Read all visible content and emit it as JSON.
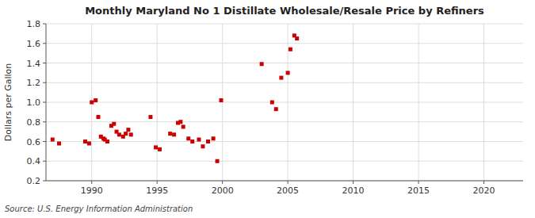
{
  "chart_data": {
    "type": "scatter",
    "title": "Monthly Maryland No 1 Distillate Wholesale/Resale Price by Refiners",
    "y_label": "Dollars per Gallon",
    "annotations": [
      "Source: U.S. Energy Information Administration"
    ],
    "color": "#cc0000",
    "marker": "square",
    "grid": true,
    "xlim": [
      1986.5,
      2023
    ],
    "ylim": [
      0.2,
      1.8
    ],
    "xticks": [
      1990,
      1995,
      2000,
      2005,
      2010,
      2015,
      2020
    ],
    "yticks": [
      0.2,
      0.4,
      0.6,
      0.8,
      {
        "value": 1.0,
        "label": "1.0"
      },
      1.2,
      1.4,
      1.6,
      1.8
    ],
    "x": [
      1987.0,
      1987.5,
      1989.5,
      1989.8,
      1990.0,
      1990.3,
      1990.5,
      1990.7,
      1990.9,
      1991.0,
      1991.2,
      1991.5,
      1991.7,
      1991.9,
      1992.1,
      1992.4,
      1992.6,
      1992.8,
      1993.0,
      1994.5,
      1994.9,
      1995.2,
      1996.0,
      1996.3,
      1996.6,
      1996.8,
      1997.0,
      1997.4,
      1997.7,
      1998.2,
      1998.5,
      1998.9,
      1999.3,
      1999.6,
      1999.9,
      2003.0,
      2003.8,
      2004.1,
      2004.5,
      2005.0,
      2005.2,
      2005.5,
      2005.7
    ],
    "values": [
      0.62,
      0.58,
      0.6,
      0.58,
      1.0,
      1.02,
      0.85,
      0.65,
      0.63,
      0.62,
      0.6,
      0.76,
      0.78,
      0.7,
      0.67,
      0.65,
      0.68,
      0.72,
      0.67,
      0.85,
      0.54,
      0.52,
      0.68,
      0.67,
      0.79,
      0.8,
      0.75,
      0.63,
      0.6,
      0.62,
      0.55,
      0.6,
      0.63,
      0.4,
      1.02,
      1.39,
      1.0,
      0.93,
      1.25,
      1.3,
      1.54,
      1.68,
      1.65
    ]
  }
}
